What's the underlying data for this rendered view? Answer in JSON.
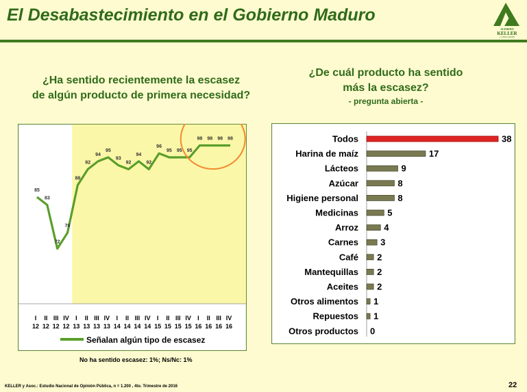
{
  "slide": {
    "title": "El Desabastecimiento en el Gobierno Maduro",
    "page_number": "22",
    "source": "KELLER y Asoc.: Estudio Nacional de Opinión Pública, n = 1.200 , 4to. Trimestre de 2016",
    "colors": {
      "title": "#2f6b1a",
      "rule": "#3f7a1f",
      "background": "#fffbd0"
    }
  },
  "logo": {
    "line1": "ALFREDO",
    "line2": "KELLER",
    "line3": "y ASOCIADOS"
  },
  "left_panel": {
    "question_line1": "¿Ha sentido recientemente la escasez",
    "question_line2": "de algún producto de primera necesidad?",
    "footnote": "No ha sentido escasez: 1%; Ns/Nc: 1%"
  },
  "right_panel": {
    "question_line1": "¿De cuál producto ha sentido",
    "question_line2": "más la escasez?",
    "question_sub": "- pregunta abierta -"
  },
  "chart_data": [
    {
      "type": "line",
      "quarters": [
        "I",
        "II",
        "III",
        "IV",
        "I",
        "II",
        "III",
        "IV",
        "I",
        "II",
        "III",
        "IV",
        "I",
        "II",
        "III",
        "IV",
        "I",
        "II",
        "III",
        "IV"
      ],
      "years": [
        "12",
        "12",
        "12",
        "12",
        "13",
        "13",
        "13",
        "13",
        "14",
        "14",
        "14",
        "14",
        "15",
        "15",
        "15",
        "15",
        "16",
        "16",
        "16",
        "16"
      ],
      "series": [
        {
          "name": "Señalan algún tipo de escasez",
          "values": [
            85,
            83,
            72,
            76,
            88,
            92,
            94,
            95,
            93,
            92,
            94,
            92,
            96,
            95,
            95,
            95,
            98,
            98,
            98,
            98
          ],
          "color": "#5a9e2a"
        }
      ],
      "ylim": [
        60,
        100
      ],
      "highlight_from_index": 4,
      "colors": {
        "highlight": "#fbf7a8",
        "plot_bg": "#ffffff",
        "frame": "#5f8a3a",
        "circle": "#f28a30"
      },
      "legend": "bottom"
    },
    {
      "type": "bar",
      "orientation": "horizontal",
      "categories": [
        "Todos",
        "Harina de maíz",
        "Lácteos",
        "Azúcar",
        "Higiene personal",
        "Medicinas",
        "Arroz",
        "Carnes",
        "Café",
        "Mantequillas",
        "Aceites",
        "Otros alimentos",
        "Repuestos",
        "Otros productos"
      ],
      "values": [
        38,
        17,
        9,
        8,
        8,
        5,
        4,
        3,
        2,
        2,
        2,
        1,
        1,
        0
      ],
      "highlight_index": 0,
      "xlim": [
        0,
        38
      ],
      "colors": {
        "bar": "#7a7a52",
        "highlight": "#e02424",
        "frame": "#5f8a3a"
      }
    }
  ]
}
